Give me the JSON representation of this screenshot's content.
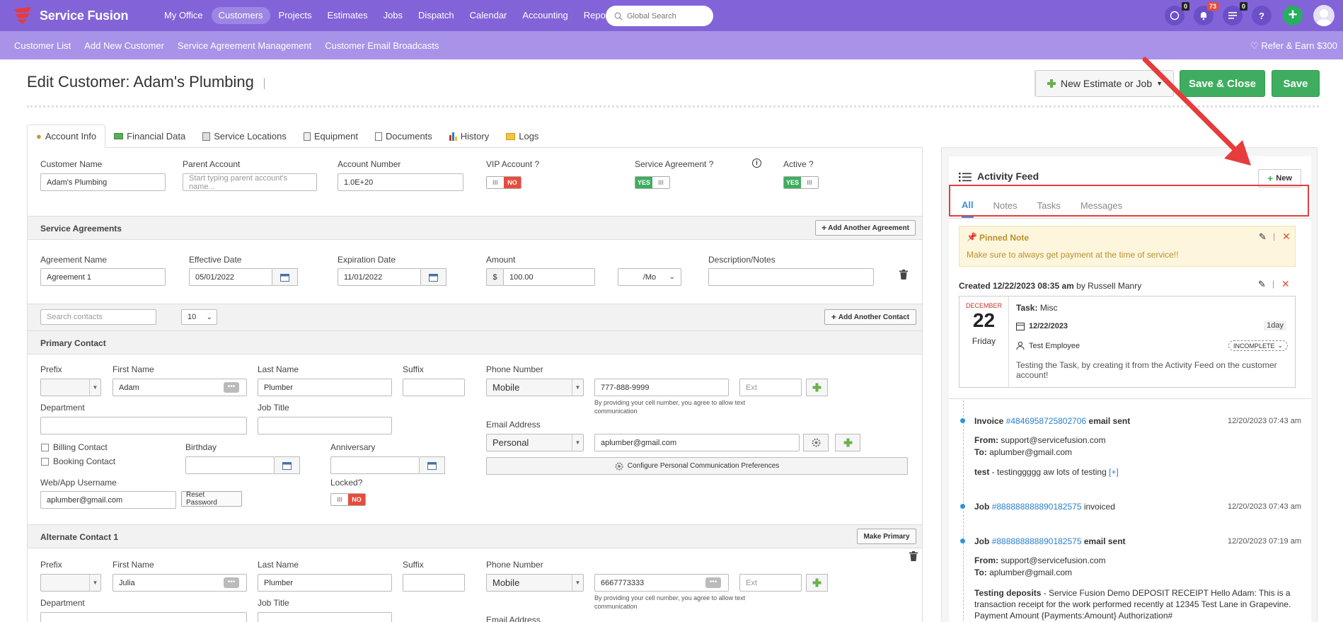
{
  "app": {
    "brand": "Service Fusion"
  },
  "nav": {
    "items": [
      "My Office",
      "Customers",
      "Projects",
      "Estimates",
      "Jobs",
      "Dispatch",
      "Calendar",
      "Accounting",
      "Reports"
    ],
    "active": "Customers"
  },
  "search": {
    "placeholder": "Global Search"
  },
  "badges": {
    "chat": "0",
    "notifications": "73",
    "tasks": "0"
  },
  "subnav": {
    "items": [
      "Customer List",
      "Add New Customer",
      "Service Agreement Management",
      "Customer Email Broadcasts"
    ],
    "refer": "Refer & Earn $300"
  },
  "page": {
    "title": "Edit Customer: Adam's Plumbing"
  },
  "actions": {
    "new_estimate": "New Estimate or Job",
    "save_close": "Save & Close",
    "save": "Save"
  },
  "tabs": [
    "Account Info",
    "Financial Data",
    "Service Locations",
    "Equipment",
    "Documents",
    "History",
    "Logs"
  ],
  "account": {
    "customer_name_label": "Customer Name",
    "customer_name": "Adam's Plumbing",
    "parent_label": "Parent Account",
    "parent_placeholder": "Start typing parent account's name...",
    "account_number_label": "Account Number",
    "account_number": "1.0E+20",
    "vip_label": "VIP Account ?",
    "vip": "NO",
    "service_agreement_label": "Service Agreement ?",
    "service_agreement": "YES",
    "active_label": "Active ?",
    "active": "YES"
  },
  "agreements": {
    "section_title": "Service Agreements",
    "add_button": "Add Another Agreement",
    "name_label": "Agreement Name",
    "name": "Agreement 1",
    "effective_label": "Effective Date",
    "effective": "05/01/2022",
    "expiration_label": "Expiration Date",
    "expiration": "11/01/2022",
    "amount_label": "Amount",
    "currency": "$",
    "amount": "100.00",
    "period": "/Mo",
    "desc_label": "Description/Notes"
  },
  "contacts": {
    "search_placeholder": "Search contacts",
    "page_size": "10",
    "add_button": "Add Another Contact"
  },
  "primary": {
    "section_title": "Primary Contact",
    "prefix_label": "Prefix",
    "first_label": "First Name",
    "first": "Adam",
    "last_label": "Last Name",
    "last": "Plumber",
    "suffix_label": "Suffix",
    "phone_label": "Phone Number",
    "phone_type": "Mobile",
    "phone": "777-888-9999",
    "ext_placeholder": "Ext",
    "phone_note": "By providing your cell number, you agree to allow text communication",
    "dept_label": "Department",
    "job_title_label": "Job Title",
    "email_label": "Email Address",
    "email_type": "Personal",
    "email": "aplumber@gmail.com",
    "billing_label": "Billing Contact",
    "booking_label": "Booking Contact",
    "birthday_label": "Birthday",
    "anniversary_label": "Anniversary",
    "comm_prefs": "Configure Personal Communication Preferences",
    "username_label": "Web/App Username",
    "username": "aplumber@gmail.com",
    "reset": "Reset Password",
    "locked_label": "Locked?",
    "locked": "NO"
  },
  "alternate": {
    "section_title": "Alternate Contact 1",
    "make_primary": "Make Primary",
    "prefix_label": "Prefix",
    "first_label": "First Name",
    "first": "Julia",
    "last_label": "Last Name",
    "last": "Plumber",
    "suffix_label": "Suffix",
    "phone_label": "Phone Number",
    "phone_type": "Mobile",
    "phone": "6667773333",
    "ext_placeholder": "Ext",
    "phone_note": "By providing your cell number, you agree to allow text communication",
    "dept_label": "Department",
    "job_title_label": "Job Title",
    "email_label": "Email Address"
  },
  "feed": {
    "title": "Activity Feed",
    "new_button": "New",
    "tabs": [
      "All",
      "Notes",
      "Tasks",
      "Messages"
    ],
    "active_tab": "All",
    "pinned_title": "Pinned Note",
    "pinned_text": "Make sure to always get payment at the time of service!!",
    "created_label": "Created",
    "created_at": "12/22/2023 08:35 am",
    "created_by_label": "by",
    "created_by": "Russell Manry",
    "task": {
      "month": "DECEMBER",
      "day": "22",
      "weekday": "Friday",
      "title_label": "Task:",
      "title": "Misc",
      "date": "12/22/2023",
      "duration": "1day",
      "assignee": "Test Employee",
      "status": "INCOMPLETE",
      "description": "Testing the Task, by creating it from the Activity Feed on the customer account!"
    },
    "items": [
      {
        "type": "Invoice",
        "ref": "#4846958725802706",
        "action": "email sent",
        "time": "12/20/2023 07:43 am",
        "from_label": "From:",
        "from": "support@servicefusion.com",
        "to_label": "To:",
        "to": "aplumber@gmail.com",
        "subject": "test",
        "body": "testinggggg aw lots of testing",
        "more": "[+]"
      },
      {
        "type": "Job",
        "ref": "#888888888890182575",
        "action": "invoiced",
        "time": "12/20/2023 07:43 am"
      },
      {
        "type": "Job",
        "ref": "#888888888890182575",
        "action": "email sent",
        "time": "12/20/2023 07:19 am",
        "from_label": "From:",
        "from": "support@servicefusion.com",
        "to_label": "To:",
        "to": "aplumber@gmail.com",
        "subject": "Testing deposits",
        "body": "Service Fusion Demo DEPOSIT RECEIPT   Hello Adam:   This is a transaction receipt for the work performed recently at 12345 Test Lane in Grapevine.   Payment Amount   {Payments:Amount} Authorization#"
      }
    ]
  },
  "colors": {
    "topbar": "#8264d8",
    "subbar": "#a893e8",
    "save": "#3fad5f",
    "annotation": "#e63c3c"
  }
}
